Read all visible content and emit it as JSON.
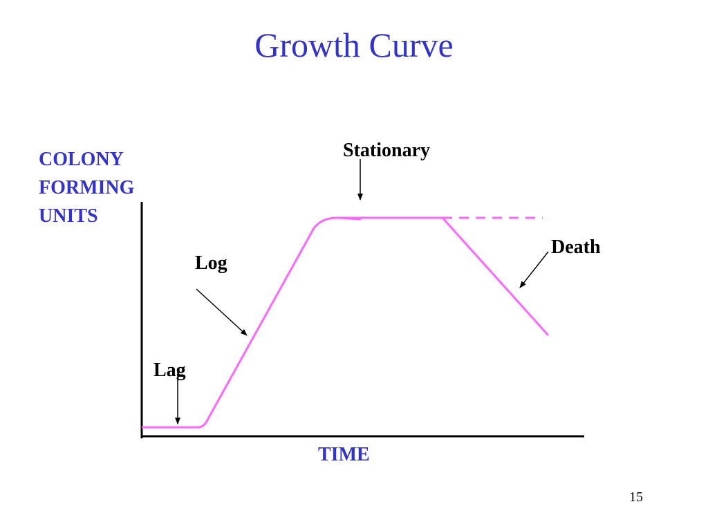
{
  "slide": {
    "title": "Growth Curve",
    "page_number": "15"
  },
  "colors": {
    "title_text": "#3333cc",
    "axis_label_text": "#3333cc",
    "curve": "#ff66ff",
    "axes": "#000000",
    "arrows": "#000000"
  },
  "axes": {
    "y_label_lines": [
      "COLONY",
      "FORMING",
      "UNITS"
    ],
    "x_label": "TIME"
  },
  "phases": {
    "lag": "Lag",
    "log": "Log",
    "stationary": "Stationary",
    "death": "Death"
  },
  "curve": {
    "death_extrapolation": "dashed"
  }
}
